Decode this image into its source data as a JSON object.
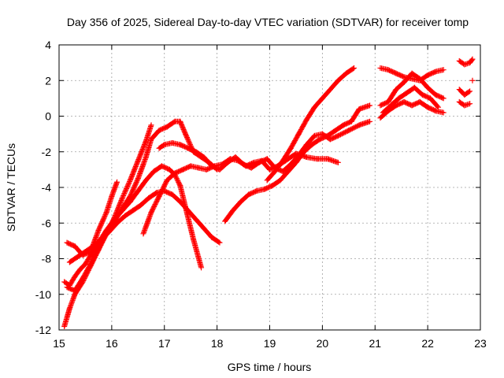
{
  "chart_data": {
    "type": "scatter",
    "title": "Day 356 of 2025, Sidereal Day-to-day VTEC variation (SDTVAR) for receiver tomp",
    "xlabel": "GPS time / hours",
    "ylabel": "SDTVAR / TECUs",
    "xlim": [
      15,
      23
    ],
    "ylim": [
      -12,
      4
    ],
    "xticks": [
      15,
      16,
      17,
      18,
      19,
      20,
      21,
      22,
      23
    ],
    "yticks": [
      -12,
      -10,
      -8,
      -6,
      -4,
      -2,
      0,
      2,
      4
    ],
    "grid": true,
    "marker": "plus",
    "color": "#ff0000",
    "series": [
      {
        "x": [
          15.1,
          15.2,
          15.3,
          15.45,
          15.6,
          15.75,
          15.9,
          16.05,
          16.2,
          16.35,
          16.5,
          16.65,
          16.75
        ],
        "y": [
          -11.8,
          -10.8,
          -10.0,
          -9.3,
          -8.4,
          -7.5,
          -6.6,
          -5.7,
          -4.6,
          -3.6,
          -2.5,
          -1.4,
          -0.5
        ]
      },
      {
        "x": [
          15.1,
          15.2,
          15.3,
          15.4,
          15.5,
          15.6,
          15.75,
          15.9,
          16.05,
          16.2,
          16.35,
          16.5,
          16.65,
          16.8,
          16.95,
          17.1,
          17.2,
          17.3,
          17.4,
          17.55,
          17.7
        ],
        "y": [
          -9.3,
          -9.5,
          -9.0,
          -8.6,
          -8.3,
          -7.8,
          -7.1,
          -6.4,
          -5.8,
          -5.3,
          -4.8,
          -4.2,
          -3.6,
          -3.1,
          -2.8,
          -3.0,
          -3.3,
          -3.9,
          -5.1,
          -6.9,
          -8.5
        ]
      },
      {
        "x": [
          15.15,
          15.3,
          15.45,
          15.6,
          15.75,
          15.9,
          16.0,
          16.1
        ],
        "y": [
          -7.1,
          -7.3,
          -7.8,
          -7.6,
          -6.4,
          -5.4,
          -4.5,
          -3.7
        ]
      },
      {
        "x": [
          15.15,
          15.3,
          15.45,
          15.6,
          15.75,
          15.9,
          16.05,
          16.2,
          16.35,
          16.5,
          16.65,
          16.75,
          16.9,
          17.05,
          17.2,
          17.3,
          17.4,
          17.55,
          17.7,
          17.85,
          18.0
        ],
        "y": [
          -9.6,
          -9.8,
          -9.1,
          -8.3,
          -7.4,
          -6.6,
          -5.9,
          -5.2,
          -4.5,
          -3.5,
          -2.3,
          -1.3,
          -0.8,
          -0.6,
          -0.3,
          -0.3,
          -1.0,
          -2.0,
          -2.3,
          -2.6,
          -3.0
        ]
      },
      {
        "x": [
          15.2,
          15.35,
          15.5,
          15.65,
          15.8,
          15.95,
          16.1,
          16.25,
          16.4,
          16.55,
          16.7,
          16.85,
          17.0,
          17.15,
          17.3,
          17.45,
          17.6,
          17.75,
          17.9,
          18.05
        ],
        "y": [
          -8.2,
          -7.9,
          -7.6,
          -7.3,
          -6.9,
          -6.5,
          -6.0,
          -5.6,
          -5.3,
          -5.0,
          -4.6,
          -4.3,
          -4.2,
          -4.4,
          -4.8,
          -5.3,
          -5.8,
          -6.3,
          -6.8,
          -7.1
        ]
      },
      {
        "x": [
          16.6,
          16.75,
          16.9,
          17.05,
          17.2,
          17.35,
          17.5,
          17.65,
          17.8,
          17.95,
          18.1,
          18.25,
          18.4,
          18.55,
          18.7,
          18.85,
          19.0,
          19.15,
          19.3,
          19.5,
          19.7,
          19.9,
          20.1,
          20.3
        ],
        "y": [
          -6.6,
          -5.4,
          -4.5,
          -3.6,
          -3.2,
          -3.0,
          -2.8,
          -2.9,
          -3.0,
          -2.8,
          -2.7,
          -2.4,
          -2.5,
          -2.8,
          -2.6,
          -2.5,
          -3.0,
          -2.8,
          -2.5,
          -2.1,
          -2.3,
          -2.4,
          -2.4,
          -2.6
        ]
      },
      {
        "x": [
          16.9,
          17.0,
          17.15,
          17.3,
          17.45,
          17.6,
          17.75,
          17.9,
          18.05,
          18.2,
          18.35,
          18.5,
          18.65,
          18.8,
          18.95,
          19.1,
          19.25,
          19.4,
          19.55,
          19.7,
          19.85,
          20.0,
          20.15,
          20.3,
          20.5,
          20.7,
          20.9
        ],
        "y": [
          -1.8,
          -1.6,
          -1.5,
          -1.6,
          -1.8,
          -2.0,
          -2.3,
          -2.8,
          -3.0,
          -2.6,
          -2.3,
          -2.7,
          -2.9,
          -2.6,
          -2.4,
          -2.9,
          -3.1,
          -2.7,
          -2.2,
          -1.6,
          -1.1,
          -1.0,
          -1.3,
          -1.1,
          -0.8,
          -0.5,
          -0.3
        ]
      },
      {
        "x": [
          18.15,
          18.3,
          18.45,
          18.6,
          18.75,
          18.9,
          19.05,
          19.2,
          19.35,
          19.5,
          19.65,
          19.8,
          19.95,
          20.1,
          20.25,
          20.4,
          20.55,
          20.7,
          20.9
        ],
        "y": [
          -5.9,
          -5.3,
          -4.8,
          -4.4,
          -4.2,
          -4.1,
          -3.9,
          -3.6,
          -3.1,
          -2.6,
          -2.0,
          -1.6,
          -1.3,
          -1.1,
          -0.8,
          -0.5,
          -0.3,
          0.4,
          0.6
        ]
      },
      {
        "x": [
          18.95,
          19.1,
          19.25,
          19.4,
          19.55,
          19.7,
          19.85,
          20.0,
          20.15,
          20.3,
          20.45,
          20.6
        ],
        "y": [
          -3.6,
          -3.1,
          -2.5,
          -1.8,
          -1.0,
          -0.2,
          0.5,
          1.0,
          1.5,
          2.0,
          2.4,
          2.7
        ]
      },
      {
        "x": [
          21.1,
          21.25,
          21.4,
          21.55,
          21.7,
          21.85,
          22.0,
          22.15,
          22.3
        ],
        "y": [
          2.7,
          2.6,
          2.4,
          2.2,
          2.1,
          2.0,
          2.3,
          2.5,
          2.6
        ]
      },
      {
        "x": [
          21.1,
          21.25,
          21.4,
          21.55,
          21.7,
          21.85,
          22.0,
          22.15,
          22.3
        ],
        "y": [
          0.6,
          0.8,
          1.5,
          1.9,
          2.4,
          2.1,
          1.6,
          1.2,
          1.0
        ]
      },
      {
        "x": [
          21.1,
          21.25,
          21.4,
          21.55,
          21.7,
          21.85,
          22.0,
          22.15,
          22.3
        ],
        "y": [
          -0.1,
          0.3,
          0.6,
          0.8,
          0.6,
          0.8,
          0.5,
          0.3,
          0.2
        ]
      },
      {
        "x": [
          21.15,
          21.3,
          21.45,
          21.6,
          21.75,
          21.9,
          22.05,
          22.2
        ],
        "y": [
          0.2,
          0.6,
          1.0,
          1.3,
          1.6,
          1.2,
          1.0,
          0.5
        ]
      },
      {
        "x": [
          22.6,
          22.7,
          22.8,
          22.85
        ],
        "y": [
          3.1,
          2.9,
          3.0,
          3.2
        ]
      },
      {
        "x": [
          22.6,
          22.7,
          22.8
        ],
        "y": [
          1.5,
          1.2,
          1.4
        ]
      },
      {
        "x": [
          22.6,
          22.7,
          22.8
        ],
        "y": [
          0.8,
          0.6,
          0.7
        ]
      },
      {
        "x": [
          22.85
        ],
        "y": [
          2.0
        ]
      }
    ]
  }
}
